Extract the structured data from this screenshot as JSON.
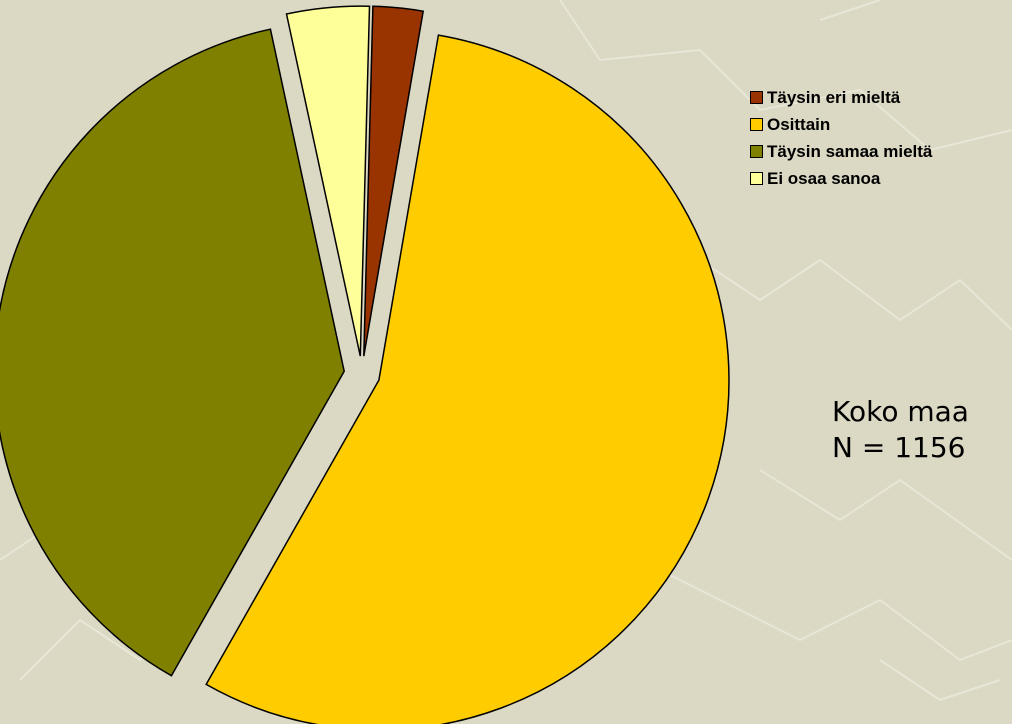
{
  "chart_data": {
    "type": "pie",
    "title": "",
    "categories": [
      "Täysin eri mieltä",
      "Osittain",
      "Täysin samaa mieltä",
      "Ei osaa sanoa"
    ],
    "values": [
      2.3,
      55.5,
      38.4,
      3.8
    ],
    "value_unit": "%",
    "colors": [
      "#993300",
      "#ffcc00",
      "#808000",
      "#ffff99"
    ],
    "exploded": true,
    "legend_position": "right"
  },
  "annotation": {
    "line1": "Koko maa",
    "line2": "N = 1156"
  }
}
